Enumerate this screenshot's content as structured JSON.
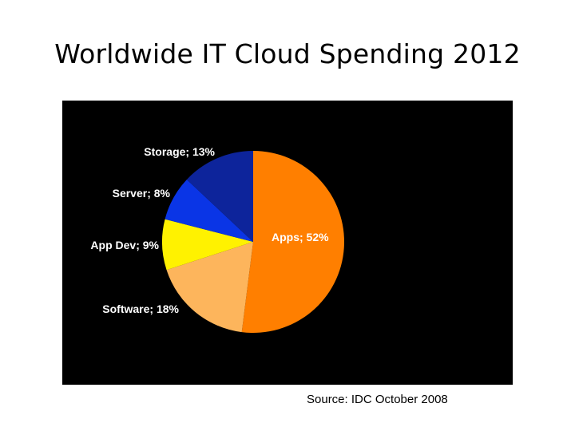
{
  "slide": {
    "title": "Worldwide IT Cloud Spending 2012",
    "source": "Source: IDC October 2008"
  },
  "chart_data": {
    "type": "pie",
    "title": "",
    "slices": [
      {
        "label": "Apps; 52%",
        "category": "Apps",
        "value": 52,
        "color": "#FF7F00"
      },
      {
        "label": "Software; 18%",
        "category": "Software",
        "value": 18,
        "color": "#FDB55C"
      },
      {
        "label": "App Dev; 9%",
        "category": "App Dev",
        "value": 9,
        "color": "#FFF200"
      },
      {
        "label": "Server; 8%",
        "category": "Server",
        "value": 8,
        "color": "#0A35E6"
      },
      {
        "label": "Storage; 13%",
        "category": "Storage",
        "value": 13,
        "color": "#0D249B"
      }
    ],
    "label_text_color": "#FFFFFF",
    "background": "#000000",
    "legend": "none"
  }
}
